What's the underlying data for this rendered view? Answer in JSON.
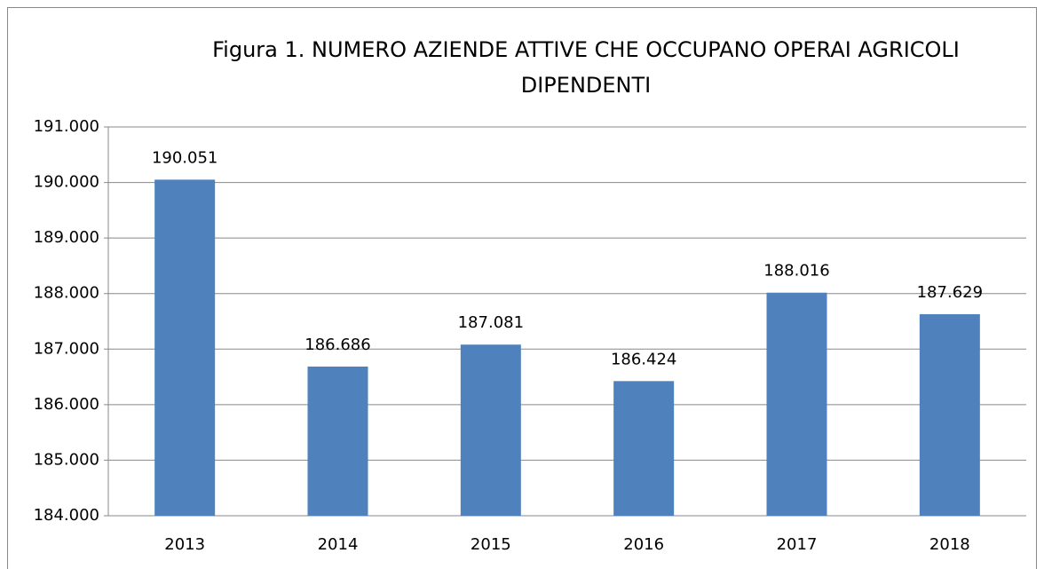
{
  "chart_data": {
    "type": "bar",
    "title": [
      "Figura 1. NUMERO AZIENDE ATTIVE CHE OCCUPANO OPERAI AGRICOLI",
      "DIPENDENTI"
    ],
    "categories": [
      "2013",
      "2014",
      "2015",
      "2016",
      "2017",
      "2018"
    ],
    "values": [
      190051,
      186686,
      187081,
      186424,
      188016,
      187629
    ],
    "value_labels": [
      "190.051",
      "186.686",
      "187.081",
      "186.424",
      "188.016",
      "187.629"
    ],
    "color": "#4f81bd",
    "ylim": [
      184000,
      191000
    ],
    "yticks": [
      {
        "value": 184000,
        "label": "184.000"
      },
      {
        "value": 185000,
        "label": "185.000"
      },
      {
        "value": 186000,
        "label": "186.000"
      },
      {
        "value": 187000,
        "label": "187.000"
      },
      {
        "value": 188000,
        "label": "188.000"
      },
      {
        "value": 189000,
        "label": "189.000"
      },
      {
        "value": 190000,
        "label": "190.000"
      },
      {
        "value": 191000,
        "label": "191.000"
      }
    ],
    "grid": true
  }
}
